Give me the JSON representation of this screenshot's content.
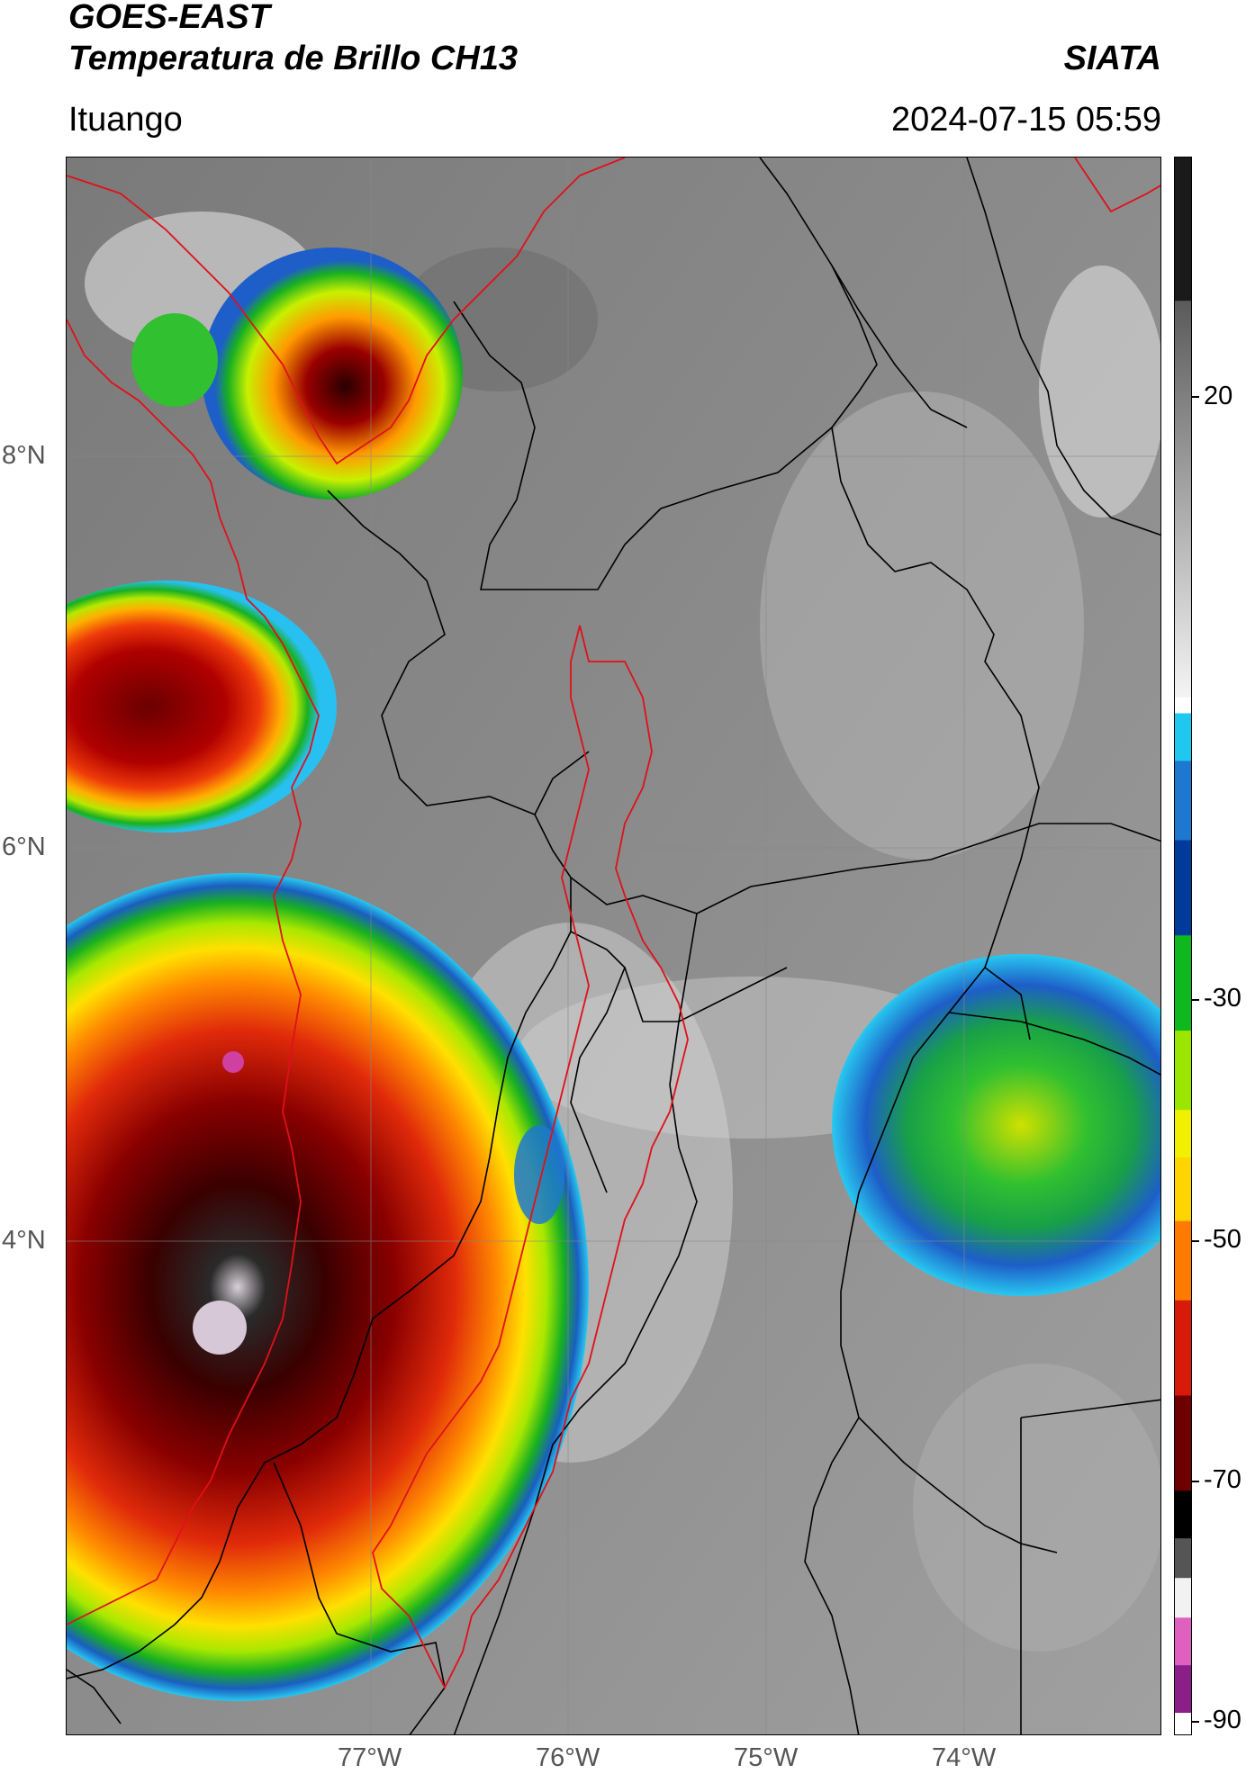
{
  "header": {
    "satellite": "GOES-EAST",
    "product": "Temperatura de Brillo CH13",
    "brand": "SIATA",
    "location": "Ituango",
    "datetime": "2024-07-15 05:59"
  },
  "map": {
    "latitude_labels": [
      "8°N",
      "6°N",
      "4°N"
    ],
    "longitude_labels": [
      "77°W",
      "76°W",
      "75°W",
      "74°W"
    ],
    "grid": true,
    "basemap_background": "grayscale infrared brightness temperature",
    "boundary_colors": {
      "admin_boundaries": "#000000",
      "basin_outline": "#e0101a",
      "coastline": "#e0101a"
    }
  },
  "colorbar": {
    "tick_labels": [
      "20",
      "-30",
      "-50",
      "-70",
      "-90"
    ],
    "tick_values": [
      20,
      -30,
      -50,
      -70,
      -90
    ],
    "range": [
      -90,
      40
    ],
    "scale_colors": [
      "#ffffff",
      "#8a1f8a",
      "#e060c0",
      "#f2f2f2",
      "#555555",
      "#000000",
      "#6e0000",
      "#d81a0a",
      "#ff7a00",
      "#ffd400",
      "#f0f000",
      "#9ae600",
      "#10b820",
      "#003a9a",
      "#1e78d0",
      "#20c8f0",
      "#ffffff",
      "#9a9a9a",
      "#1a1a1a"
    ]
  }
}
